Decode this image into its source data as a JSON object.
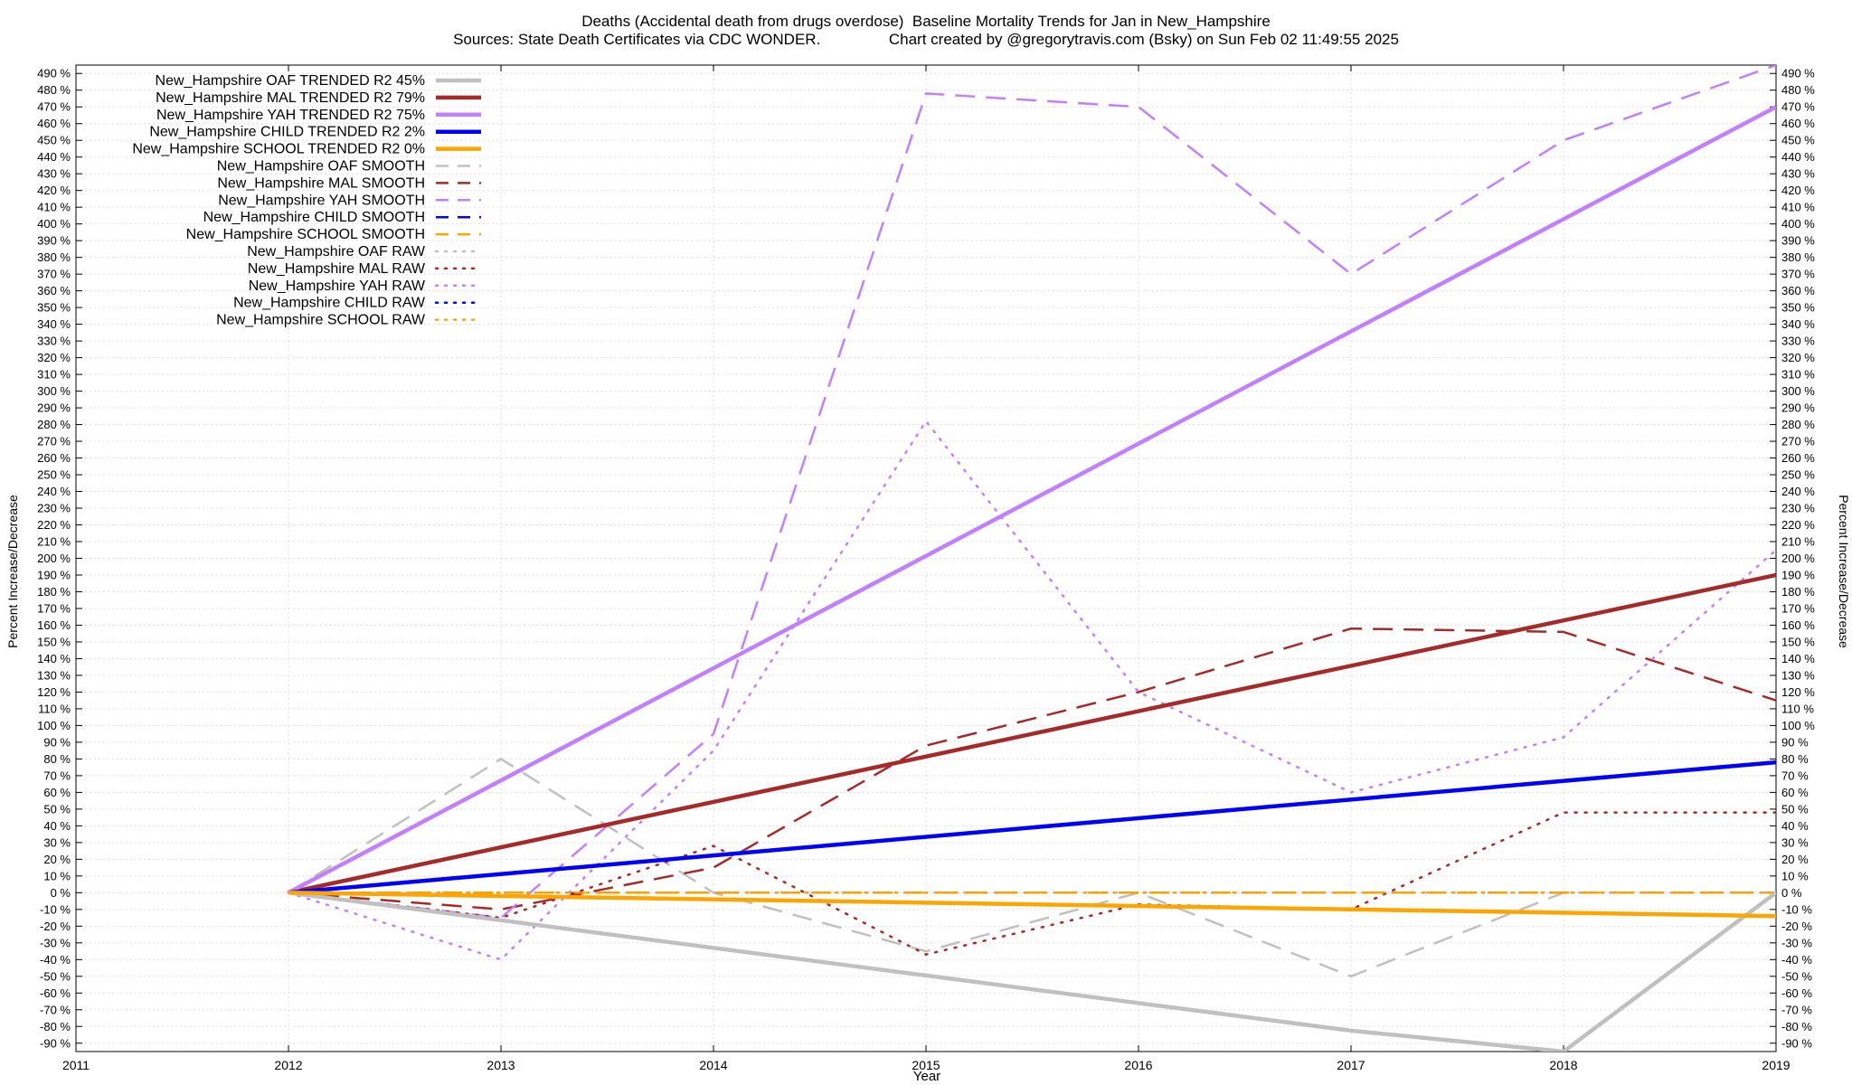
{
  "chart_data": {
    "type": "line",
    "title": "Deaths (Accidental death from drugs overdose)  Baseline Mortality Trends for Jan in New_Hampshire",
    "subtitle": "Sources: State Death Certificates via CDC WONDER.                Chart created by @gregorytravis.com (Bsky) on Sun Feb 02 11:49:55 2025",
    "xlabel": "Year",
    "ylabel": "Percent Increase/Decrease",
    "ylabel_right": "Percent Increase/Decrease",
    "xlim": [
      2011,
      2019
    ],
    "ylim": [
      -95,
      495
    ],
    "x_ticks": [
      2011,
      2012,
      2013,
      2014,
      2015,
      2016,
      2017,
      2018,
      2019
    ],
    "y_ticks": [
      -90,
      -80,
      -70,
      -60,
      -50,
      -40,
      -30,
      -20,
      -10,
      0,
      10,
      20,
      30,
      40,
      50,
      60,
      70,
      80,
      90,
      100,
      110,
      120,
      130,
      140,
      150,
      160,
      170,
      180,
      190,
      200,
      210,
      220,
      230,
      240,
      250,
      260,
      270,
      280,
      290,
      300,
      310,
      320,
      330,
      340,
      350,
      360,
      370,
      380,
      390,
      400,
      410,
      420,
      430,
      440,
      450,
      460,
      470,
      480,
      490
    ],
    "y_tick_suffix": " %",
    "grid": true,
    "legend_position": "top-left",
    "series": [
      {
        "name": "New_Hampshire OAF TRENDED R2  45%",
        "color": "#c0c0c0",
        "style": "solid",
        "x": [
          2012,
          2013,
          2014,
          2015,
          2016,
          2017,
          2018,
          2019
        ],
        "values": [
          0,
          -16.5,
          -33,
          -49.5,
          -66,
          -82.5,
          -95,
          0
        ]
      },
      {
        "name": "New_Hampshire MAL TRENDED R2  79%",
        "color": "#a52a2a",
        "style": "solid",
        "x": [
          2012,
          2019
        ],
        "values": [
          0,
          190
        ]
      },
      {
        "name": "New_Hampshire YAH TRENDED R2  75%",
        "color": "#c080ff",
        "style": "solid",
        "x": [
          2012,
          2019
        ],
        "values": [
          0,
          470
        ]
      },
      {
        "name": "New_Hampshire CHILD TRENDED R2  2%",
        "color": "#0000ff",
        "style": "solid",
        "x": [
          2012,
          2019
        ],
        "values": [
          0,
          78
        ]
      },
      {
        "name": "New_Hampshire SCHOOL TRENDED R2  0%",
        "color": "#ffa500",
        "style": "solid",
        "x": [
          2012,
          2019
        ],
        "values": [
          0,
          -14
        ]
      },
      {
        "name": "New_Hampshire OAF SMOOTH",
        "color": "#c0c0c0",
        "style": "dash",
        "x": [
          2012,
          2013,
          2014,
          2015,
          2016,
          2017,
          2018,
          2019
        ],
        "values": [
          0,
          80,
          0,
          -35,
          0,
          -50,
          0,
          0
        ]
      },
      {
        "name": "New_Hampshire MAL SMOOTH",
        "color": "#a52a2a",
        "style": "dash",
        "x": [
          2012,
          2013,
          2014,
          2015,
          2016,
          2017,
          2018,
          2019
        ],
        "values": [
          0,
          -10,
          15,
          88,
          120,
          158,
          156,
          115
        ]
      },
      {
        "name": "New_Hampshire YAH SMOOTH",
        "color": "#c080ff",
        "style": "dash",
        "x": [
          2012,
          2013,
          2014,
          2015,
          2016,
          2017,
          2018,
          2019
        ],
        "values": [
          0,
          -15,
          95,
          478,
          470,
          370,
          450,
          495
        ]
      },
      {
        "name": "New_Hampshire CHILD SMOOTH",
        "color": "#0000ff",
        "style": "dash",
        "x": [
          2012,
          2013,
          2014,
          2015,
          2016,
          2017,
          2018,
          2019
        ],
        "values": [
          0,
          0,
          0,
          0,
          0,
          0,
          0,
          0
        ]
      },
      {
        "name": "New_Hampshire SCHOOL SMOOTH",
        "color": "#ffa500",
        "style": "dash",
        "x": [
          2012,
          2013,
          2014,
          2015,
          2016,
          2017,
          2018,
          2019
        ],
        "values": [
          0,
          0,
          0,
          0,
          0,
          0,
          0,
          0
        ]
      },
      {
        "name": "New_Hampshire OAF RAW",
        "color": "#c0c0c0",
        "style": "dot",
        "x": [
          2012,
          2013,
          2014,
          2015,
          2016,
          2017,
          2018,
          2019
        ],
        "values": [
          0,
          0,
          0,
          0,
          0,
          0,
          0,
          0
        ]
      },
      {
        "name": "New_Hampshire MAL RAW",
        "color": "#a52a2a",
        "style": "dot",
        "x": [
          2012,
          2013,
          2014,
          2015,
          2016,
          2017,
          2018,
          2019
        ],
        "values": [
          0,
          -15,
          28,
          -37,
          -7,
          -10,
          48,
          48
        ]
      },
      {
        "name": "New_Hampshire YAH RAW",
        "color": "#c080ff",
        "style": "dot",
        "x": [
          2012,
          2013,
          2014,
          2015,
          2016,
          2017,
          2018,
          2019
        ],
        "values": [
          0,
          -40,
          85,
          282,
          120,
          60,
          93,
          205
        ]
      },
      {
        "name": "New_Hampshire CHILD RAW",
        "color": "#0000ff",
        "style": "dot",
        "x": [
          2012,
          2013,
          2014,
          2015,
          2016,
          2017,
          2018,
          2019
        ],
        "values": [
          0,
          0,
          0,
          0,
          0,
          0,
          0,
          0
        ]
      },
      {
        "name": "New_Hampshire SCHOOL RAW",
        "color": "#ffa500",
        "style": "dot",
        "x": [
          2012,
          2013,
          2014,
          2015,
          2016,
          2017,
          2018,
          2019
        ],
        "values": [
          0,
          0,
          0,
          0,
          0,
          0,
          0,
          0
        ]
      }
    ]
  }
}
